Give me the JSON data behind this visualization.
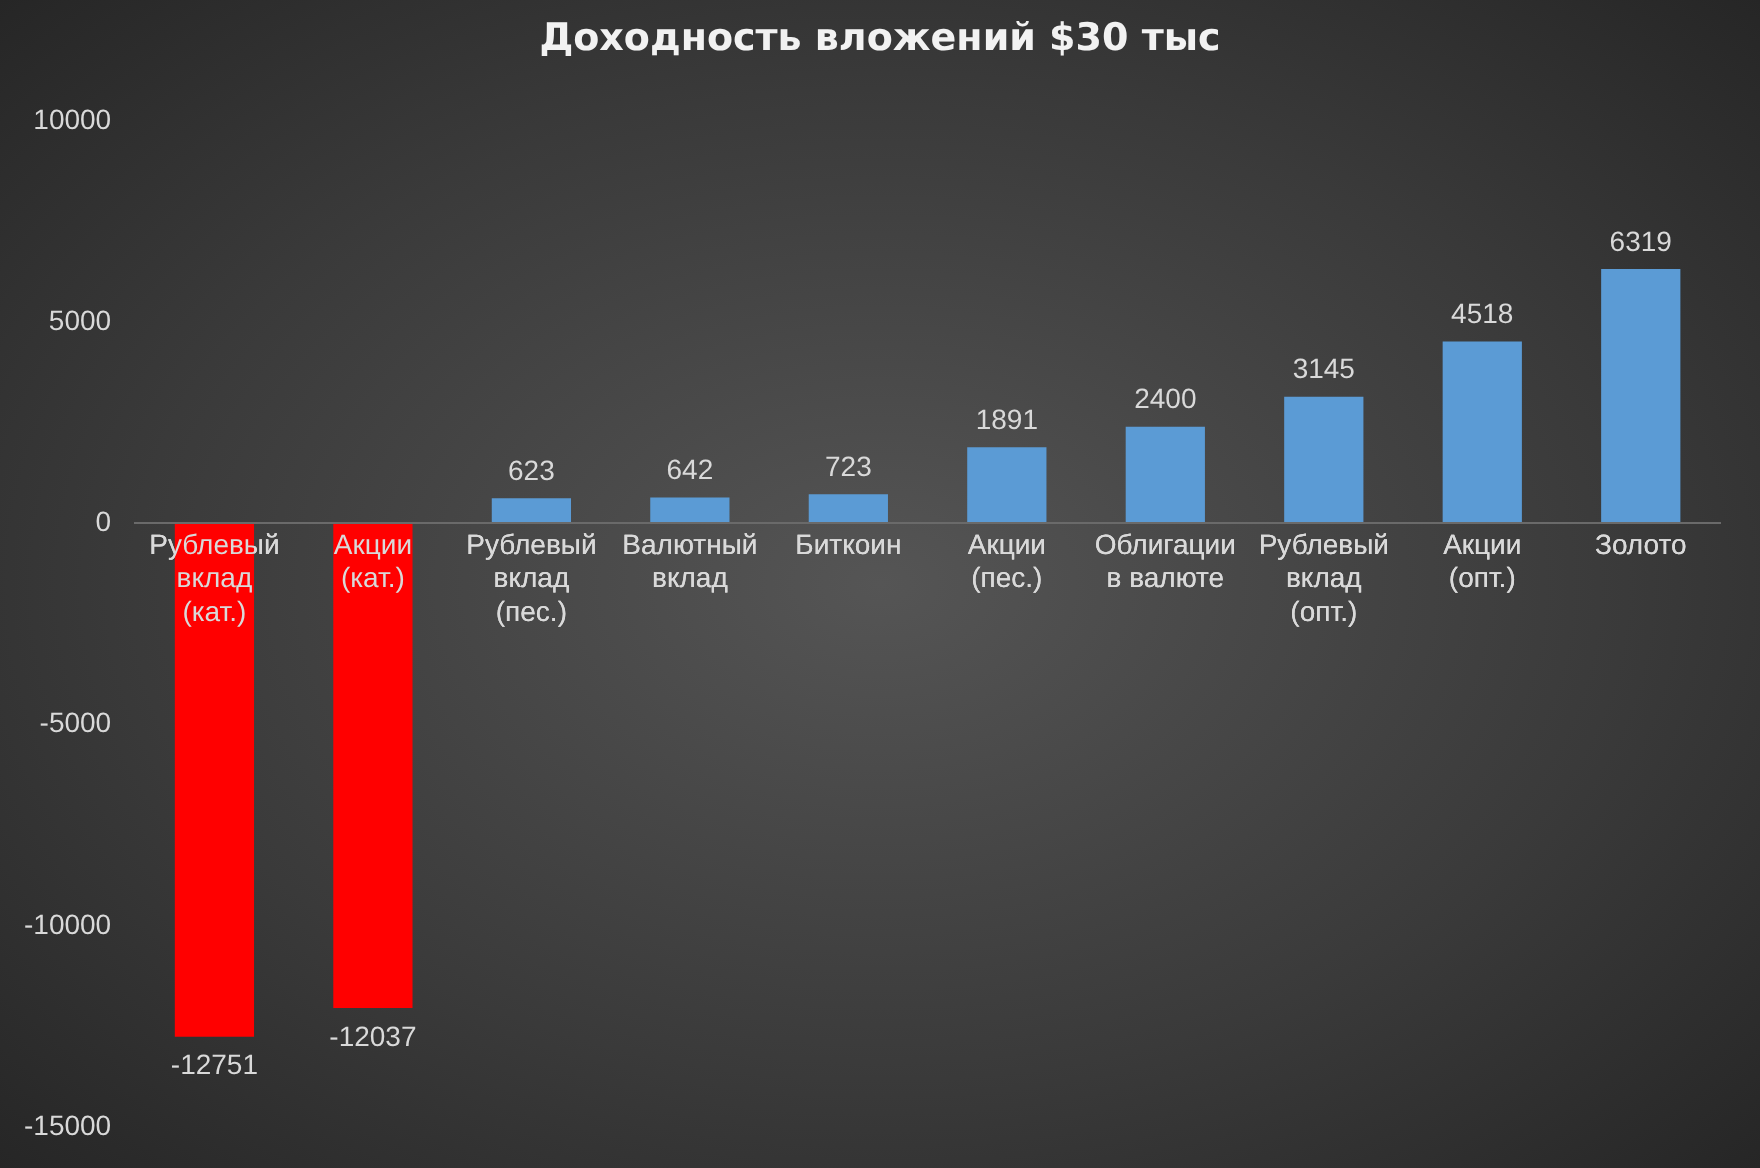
{
  "chart_data": {
    "type": "bar",
    "title": "Доходность вложений $30 тыс",
    "categories": [
      "Рублевый вклад (кат.)",
      "Акции (кат.)",
      "Рублевый вклад (пес.)",
      "Валютный вклад",
      "Биткоин",
      "Акции (пес.)",
      "Облигации в валюте",
      "Рублевый вклад (опт.)",
      "Акции (опт.)",
      "Золото"
    ],
    "values": [
      -12751,
      -12037,
      623,
      642,
      723,
      1891,
      2400,
      3145,
      4518,
      6319
    ],
    "colors": [
      "#ff0000",
      "#ff0000",
      "#5b9bd5",
      "#5b9bd5",
      "#5b9bd5",
      "#5b9bd5",
      "#5b9bd5",
      "#5b9bd5",
      "#5b9bd5",
      "#5b9bd5"
    ],
    "ylim": [
      -15000,
      10000
    ],
    "yticks": [
      -15000,
      -10000,
      -5000,
      0,
      5000,
      10000
    ],
    "data_labels": true,
    "grid": false,
    "legend": false
  }
}
